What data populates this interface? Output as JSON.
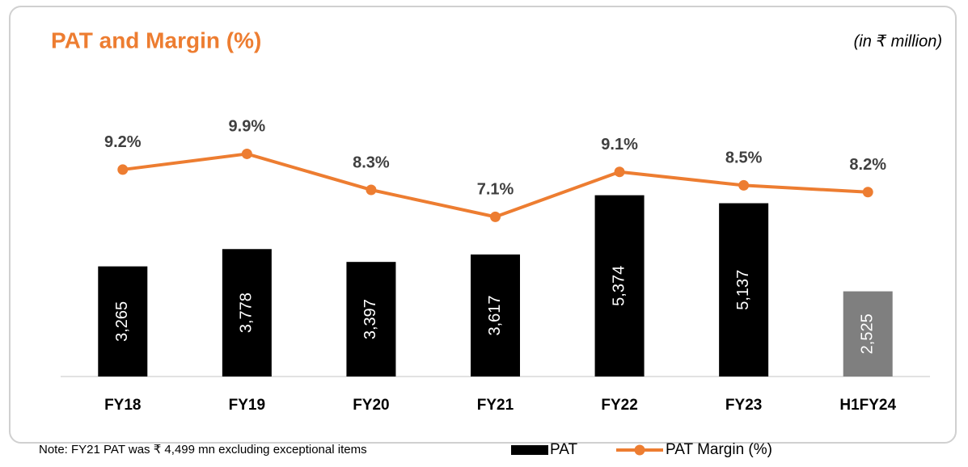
{
  "chart_data": {
    "type": "bar_line",
    "title": "PAT and Margin (%)",
    "subtitle": "(in ₹ million)",
    "note": "Note: FY21 PAT was ₹ 4,499 mn excluding exceptional items",
    "categories": [
      "FY18",
      "FY19",
      "FY20",
      "FY21",
      "FY22",
      "FY23",
      "H1FY24"
    ],
    "series": [
      {
        "name": "PAT",
        "type": "bar",
        "color": "#000000",
        "colors": [
          "#000000",
          "#000000",
          "#000000",
          "#000000",
          "#000000",
          "#000000",
          "#7f7f7f"
        ],
        "values": [
          3265,
          3778,
          3397,
          3617,
          5374,
          5137,
          2525
        ],
        "value_labels": [
          "3,265",
          "3,778",
          "3,397",
          "3,617",
          "5,374",
          "5,137",
          "2,525"
        ]
      },
      {
        "name": "PAT Margin (%)",
        "type": "line",
        "axis": "y2",
        "color": "#ed7d31",
        "values": [
          9.2,
          9.9,
          8.3,
          7.1,
          9.1,
          8.5,
          8.2
        ],
        "value_labels": [
          "9.2%",
          "9.9%",
          "8.3%",
          "7.1%",
          "9.1%",
          "8.5%",
          "8.2%"
        ]
      }
    ],
    "ylim": [
      0,
      8000
    ],
    "y2lim": [
      0,
      12
    ],
    "legend": "bottom"
  }
}
